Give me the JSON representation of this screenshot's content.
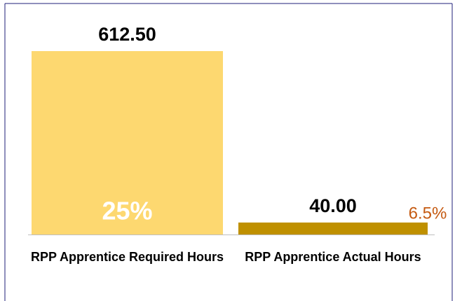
{
  "chart_data": {
    "type": "bar",
    "categories": [
      "RPP Apprentice Required Hours",
      "RPP Apprentice Actual Hours"
    ],
    "values": [
      612.5,
      40
    ],
    "value_labels": [
      "612.50",
      "40.00"
    ],
    "colors": [
      "#fdd870",
      "#bf9000"
    ],
    "annotations": [
      {
        "text": "25%",
        "color": "#ffffff"
      },
      {
        "text": "6.5%",
        "color": "#c55a11"
      }
    ]
  }
}
